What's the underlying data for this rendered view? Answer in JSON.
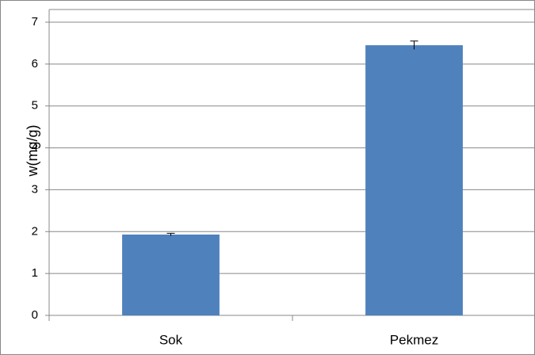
{
  "chart_data": {
    "type": "bar",
    "y_label": "w(mg/g)",
    "categories": [
      "Sok",
      "Pekmez"
    ],
    "values": [
      1.93,
      6.45
    ],
    "errors": [
      0.03,
      0.1
    ],
    "color": "#4f81bd",
    "ylim": [
      0,
      7
    ],
    "yticks": [
      0,
      1,
      2,
      3,
      4,
      5,
      6,
      7
    ],
    "grid": true
  }
}
